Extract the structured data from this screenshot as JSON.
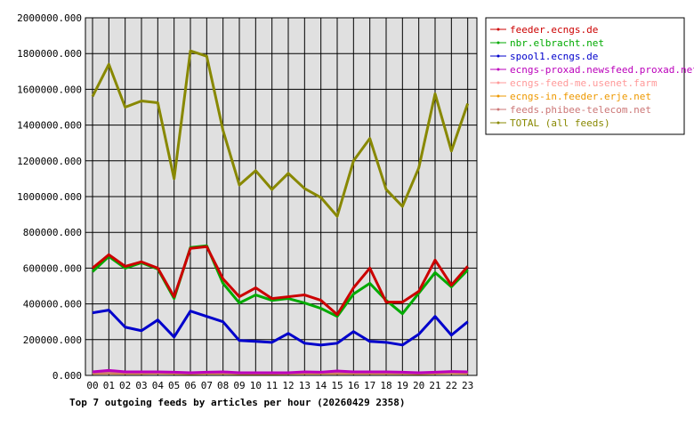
{
  "chart_data": {
    "type": "line",
    "title": "Top 7 outgoing feeds by articles per hour (20260429 2358)",
    "xlabel": "",
    "ylabel": "",
    "categories": [
      "00",
      "01",
      "02",
      "03",
      "04",
      "05",
      "06",
      "07",
      "08",
      "09",
      "10",
      "11",
      "12",
      "13",
      "14",
      "15",
      "16",
      "17",
      "18",
      "19",
      "20",
      "21",
      "22",
      "23"
    ],
    "ylim": [
      0,
      2000000
    ],
    "yticks": [
      "0.000",
      "200000.000",
      "400000.000",
      "600000.000",
      "800000.000",
      "1000000.000",
      "1200000.000",
      "1400000.000",
      "1600000.000",
      "1800000.000",
      "2000000.000"
    ],
    "grid": true,
    "legend_position": "right",
    "series": [
      {
        "name": "feeder.ecngs.de",
        "color": "#cc0000",
        "values": [
          600000,
          675000,
          610000,
          635000,
          600000,
          440000,
          710000,
          720000,
          540000,
          440000,
          490000,
          430000,
          440000,
          450000,
          420000,
          340000,
          490000,
          600000,
          410000,
          410000,
          470000,
          645000,
          505000,
          610000
        ]
      },
      {
        "name": "nbr.elbracht.net",
        "color": "#00aa00",
        "values": [
          580000,
          665000,
          600000,
          630000,
          595000,
          430000,
          715000,
          725000,
          515000,
          405000,
          450000,
          420000,
          430000,
          405000,
          375000,
          330000,
          455000,
          515000,
          420000,
          345000,
          460000,
          575000,
          495000,
          590000
        ]
      },
      {
        "name": "spool1.ecngs.de",
        "color": "#0000cc",
        "values": [
          350000,
          365000,
          270000,
          250000,
          310000,
          215000,
          360000,
          330000,
          300000,
          195000,
          190000,
          185000,
          235000,
          180000,
          170000,
          180000,
          245000,
          190000,
          185000,
          170000,
          230000,
          330000,
          225000,
          300000
        ]
      },
      {
        "name": "ecngs-proxad.newsfeed.proxad.net",
        "color": "#bb00bb",
        "values": [
          20000,
          28000,
          20000,
          20000,
          20000,
          18000,
          15000,
          18000,
          20000,
          15000,
          15000,
          15000,
          15000,
          20000,
          18000,
          25000,
          20000,
          20000,
          20000,
          18000,
          15000,
          18000,
          22000,
          20000
        ]
      },
      {
        "name": "ecngs-feed-me.usenet.farm",
        "color": "#ff9999",
        "values": [
          15000,
          18000,
          16000,
          18000,
          17000,
          15000,
          12000,
          15000,
          16000,
          12000,
          12000,
          12000,
          14000,
          15000,
          15000,
          16000,
          15000,
          15000,
          15000,
          14000,
          12000,
          15000,
          18000,
          16000
        ]
      },
      {
        "name": "ecngs-in.feeder.erje.net",
        "color": "#ee9900",
        "values": [
          12000,
          13000,
          12000,
          12000,
          13000,
          12000,
          10000,
          12000,
          12000,
          10000,
          10000,
          10000,
          11000,
          12000,
          12000,
          12000,
          12000,
          12000,
          12000,
          11000,
          10000,
          12000,
          14000,
          12000
        ]
      },
      {
        "name": "feeds.phibee-telecom.net",
        "color": "#cc7777",
        "values": [
          14000,
          15000,
          14000,
          14000,
          15000,
          14000,
          12000,
          14000,
          14000,
          12000,
          12000,
          12000,
          13000,
          14000,
          14000,
          14000,
          14000,
          14000,
          14000,
          13000,
          12000,
          14000,
          16000,
          14000
        ]
      },
      {
        "name": "TOTAL (all feeds)",
        "color": "#888800",
        "values": [
          1560000,
          1740000,
          1500000,
          1535000,
          1525000,
          1100000,
          1815000,
          1785000,
          1370000,
          1065000,
          1145000,
          1040000,
          1130000,
          1045000,
          995000,
          890000,
          1200000,
          1325000,
          1040000,
          945000,
          1160000,
          1575000,
          1255000,
          1520000
        ]
      }
    ]
  }
}
